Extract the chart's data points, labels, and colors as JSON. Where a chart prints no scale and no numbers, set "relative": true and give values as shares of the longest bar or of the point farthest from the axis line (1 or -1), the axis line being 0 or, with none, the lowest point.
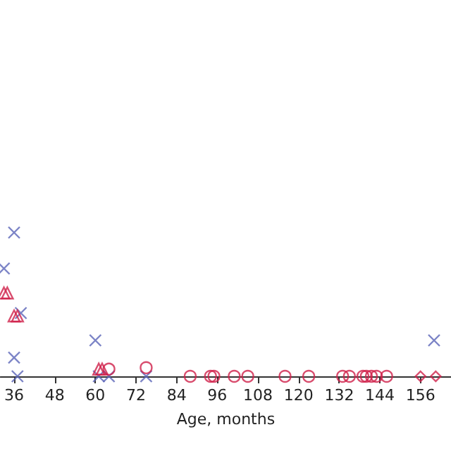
{
  "chart_data": {
    "type": "scatter",
    "xlabel": "Age, months",
    "relative": true,
    "xlim": [
      32,
      165
    ],
    "xticks": [
      36,
      48,
      60,
      72,
      84,
      96,
      108,
      120,
      132,
      144,
      156
    ],
    "grid": false,
    "series": [
      {
        "color": "#5a64b8",
        "marker": "cross",
        "x": [
          36,
          33,
          38,
          36,
          37,
          60,
          61,
          64,
          75,
          160
        ],
        "values": [
          1,
          0.75,
          0.44,
          0.13,
          0,
          0.25,
          0,
          0,
          0,
          0.25
        ]
      },
      {
        "color": "#d0204a",
        "marker": "triangle",
        "x": [
          33,
          34,
          36,
          37,
          61,
          62
        ],
        "values": [
          0.58,
          0.58,
          0.42,
          0.42,
          0.05,
          0.05
        ]
      },
      {
        "color": "#d0204a",
        "marker": "circle",
        "x": [
          64,
          75,
          88,
          94,
          95,
          101,
          105,
          116,
          123,
          133,
          135,
          139,
          140,
          141.5,
          143,
          146
        ],
        "values": [
          0.05,
          0.06,
          0,
          0,
          0,
          0,
          0,
          0,
          0,
          0,
          0,
          0,
          0,
          0,
          0,
          0
        ]
      },
      {
        "color": "#d0204a",
        "marker": "diamond",
        "x": [
          156,
          160.5
        ],
        "values": [
          0,
          0
        ]
      }
    ]
  }
}
